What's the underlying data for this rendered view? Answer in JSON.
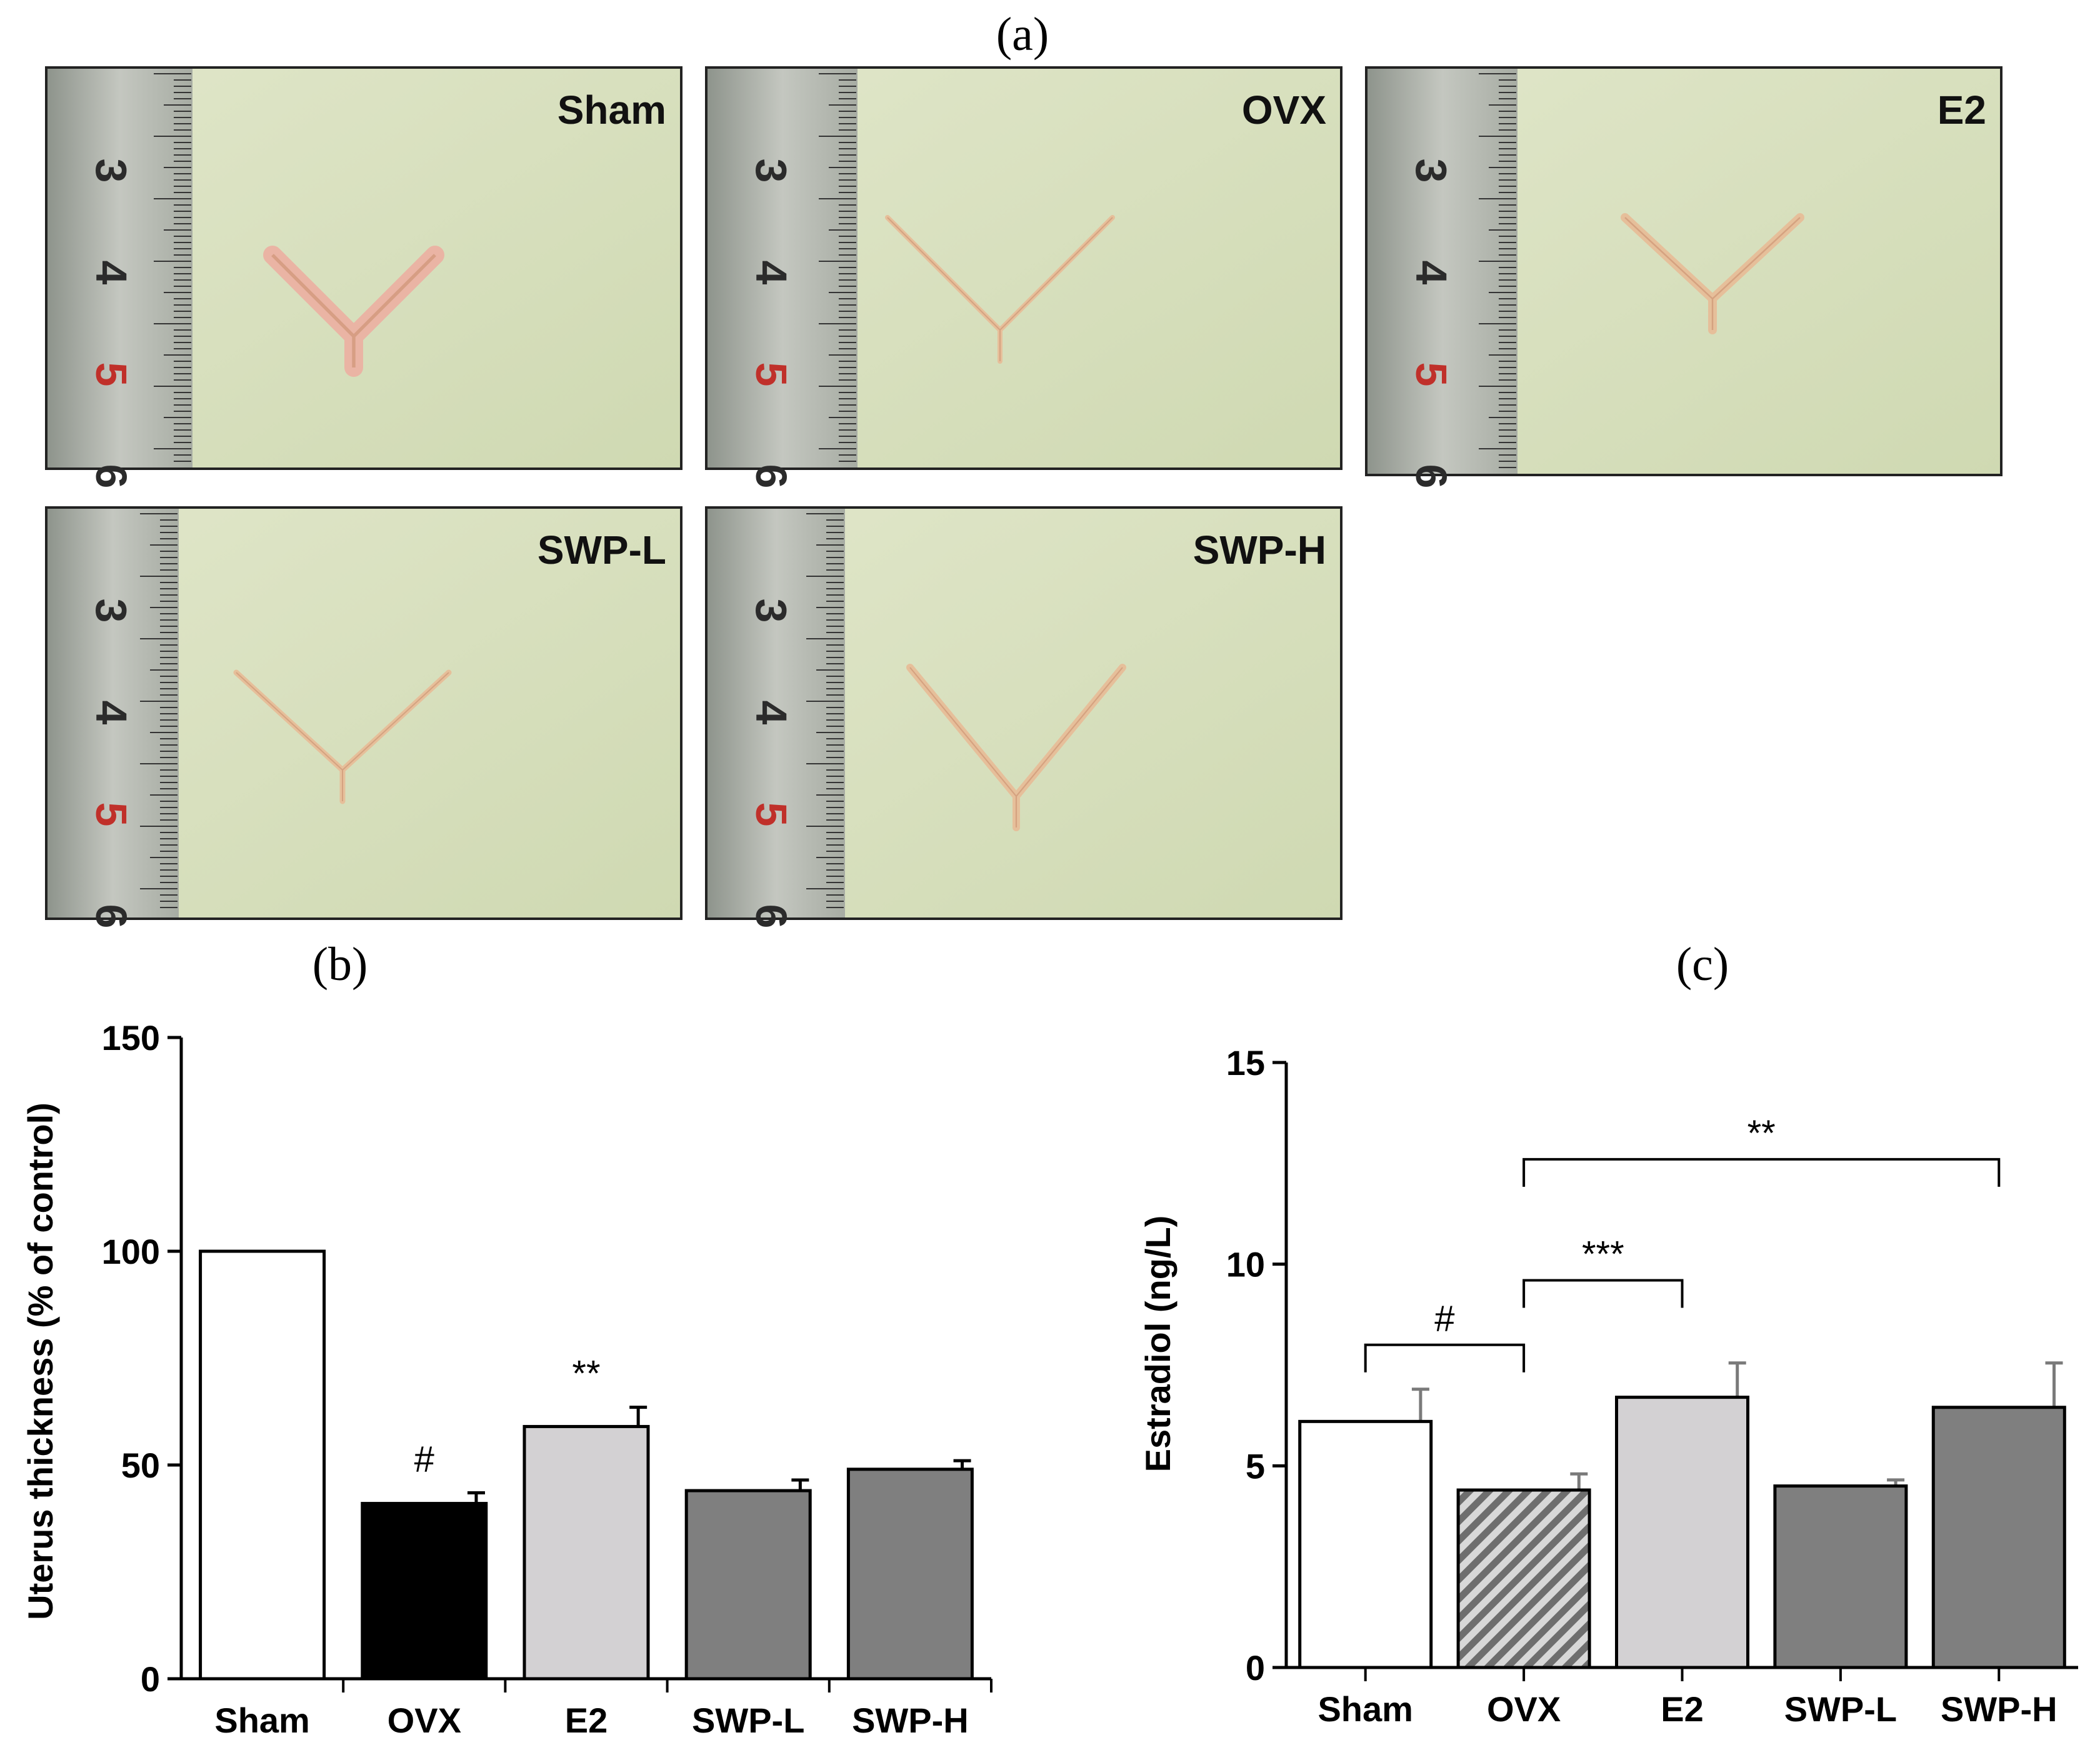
{
  "figure": {
    "panel_a_label": "(a)",
    "panel_b_label": "(b)",
    "panel_c_label": "(c)"
  },
  "photos": {
    "tiles": [
      {
        "label": "Sham"
      },
      {
        "label": "OVX"
      },
      {
        "label": "E2"
      },
      {
        "label": "SWP-L"
      },
      {
        "label": "SWP-H"
      }
    ],
    "ruler_numbers": [
      "3",
      "4",
      "5",
      "6"
    ]
  },
  "colors": {
    "sham": "#ffffff",
    "ovx_b": "#000000",
    "e2": "#d3d1d3",
    "swp": "#7f7f7f",
    "ovx_c_hatch": "#7a7a7a",
    "photo_bg": "#d9e2bf",
    "tissue": "#e6bf9a",
    "tissue_sham": "#eab4a4",
    "ruler_red": "#c0302a"
  },
  "chart_data": [
    {
      "id": "b",
      "type": "bar",
      "title": "",
      "xlabel": "",
      "ylabel": "Uterus thickness (% of control)",
      "categories": [
        "Sham",
        "OVX",
        "E2",
        "SWP-L",
        "SWP-H"
      ],
      "values": [
        100,
        41,
        59,
        44,
        49
      ],
      "errors": [
        0,
        2.5,
        4.5,
        2.5,
        2
      ],
      "ylim": [
        0,
        150
      ],
      "yticks": [
        0,
        50,
        100,
        150
      ],
      "annotations": [
        "",
        "#",
        "**",
        "",
        ""
      ]
    },
    {
      "id": "c",
      "type": "bar",
      "title": "",
      "xlabel": "",
      "ylabel": "Estradiol (ng/L)",
      "categories": [
        "Sham",
        "OVX",
        "E2",
        "SWP-L",
        "SWP-H"
      ],
      "values": [
        6.1,
        4.4,
        6.7,
        4.5,
        6.45
      ],
      "errors": [
        0.8,
        0.4,
        0.85,
        0.15,
        1.1
      ],
      "ylim": [
        0,
        15
      ],
      "yticks": [
        0,
        5,
        10,
        15
      ],
      "brackets": [
        {
          "from": "Sham",
          "to": "OVX",
          "label": "#",
          "level": 8.0
        },
        {
          "from": "OVX",
          "to": "E2",
          "label": "***",
          "level": 9.6
        },
        {
          "from": "OVX",
          "to": "SWP-H",
          "label": "**",
          "level": 12.6
        }
      ]
    }
  ]
}
